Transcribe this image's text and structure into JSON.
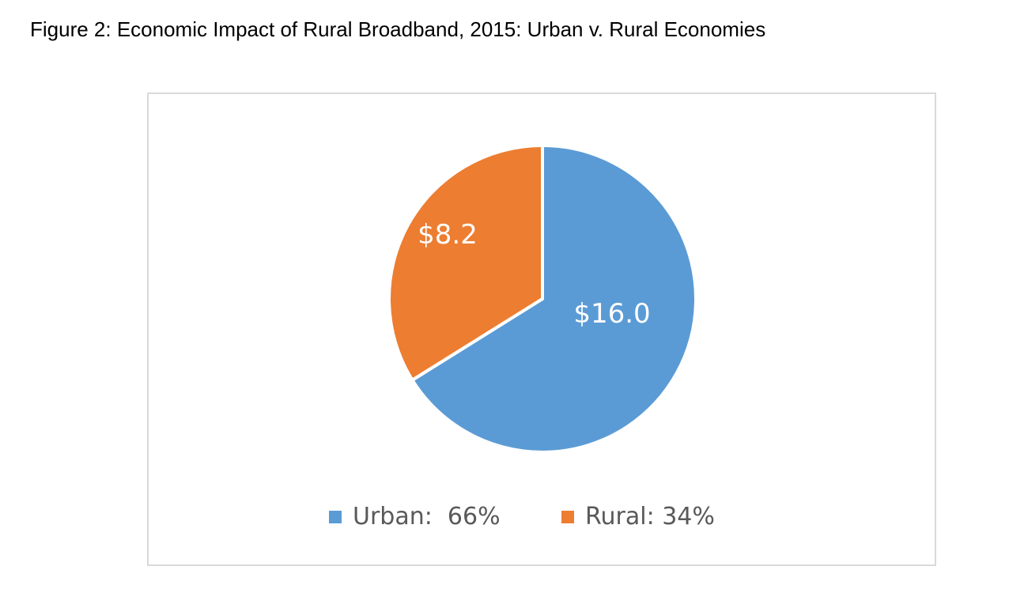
{
  "figure": {
    "title": "Figure 2:  Economic Impact of Rural Broadband, 2015:  Urban v. Rural Economies"
  },
  "chart_data": {
    "type": "pie",
    "title": "",
    "slices": [
      {
        "name": "Urban",
        "value": 16.0,
        "percent": 66,
        "data_label": "$16.0",
        "legend_label": "Urban:  66%",
        "color": "#5b9bd5"
      },
      {
        "name": "Rural",
        "value": 8.2,
        "percent": 34,
        "data_label": "$8.2",
        "legend_label": "Rural: 34%",
        "color": "#ed7d31"
      }
    ],
    "start_angle": "12 o'clock",
    "direction": "clockwise",
    "legend_position": "bottom",
    "border_color": "#d9d9d9"
  }
}
